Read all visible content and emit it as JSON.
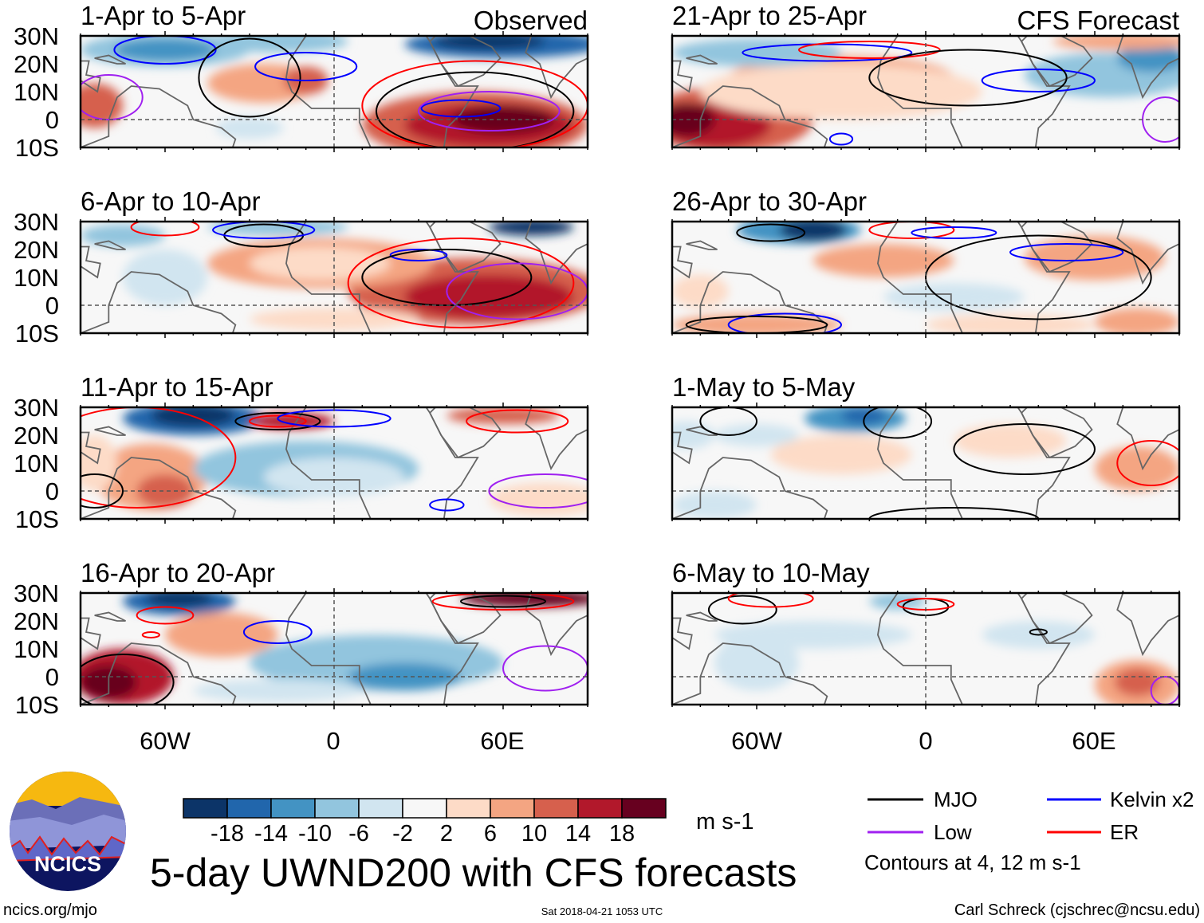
{
  "column_headers": {
    "observed": "Observed",
    "forecast": "CFS Forecast"
  },
  "panels": [
    {
      "title": "1-Apr to 5-Apr",
      "kind": "observed"
    },
    {
      "title": "21-Apr to 25-Apr",
      "kind": "forecast"
    },
    {
      "title": "6-Apr to 10-Apr",
      "kind": "observed"
    },
    {
      "title": "26-Apr to 30-Apr",
      "kind": "forecast"
    },
    {
      "title": "11-Apr to 15-Apr",
      "kind": "observed"
    },
    {
      "title": "1-May to 5-May",
      "kind": "forecast"
    },
    {
      "title": "16-Apr to 20-Apr",
      "kind": "observed"
    },
    {
      "title": "6-May to 10-May",
      "kind": "forecast"
    }
  ],
  "lat_labels": [
    "30N",
    "20N",
    "10N",
    "0",
    "10S"
  ],
  "lon_labels": [
    "60W",
    "0",
    "60E"
  ],
  "colorbar": {
    "labels": [
      "-18",
      "-14",
      "-10",
      "-6",
      "-2",
      "2",
      "6",
      "10",
      "14",
      "18"
    ],
    "colors": [
      "#0c3468",
      "#2166ac",
      "#4393c3",
      "#92c5de",
      "#d1e5f0",
      "#f7f7f7",
      "#fddbc7",
      "#f4a582",
      "#d6604d",
      "#b2182b",
      "#67001f"
    ],
    "units": "m s-1"
  },
  "legend": {
    "items": [
      {
        "label": "MJO",
        "color": "#000000"
      },
      {
        "label": "Kelvin x2",
        "color": "#0000ff"
      },
      {
        "label": "Low",
        "color": "#a020f0"
      },
      {
        "label": "ER",
        "color": "#ff0000"
      }
    ],
    "note": "Contours at 4, 12 m s-1"
  },
  "title": "5-day UWND200 with CFS forecasts",
  "logo_text": "NCICS",
  "footer": {
    "url": "ncics.org/mjo",
    "timestamp": "Sat 2018-04-21 1053 UTC",
    "author": "Carl Schreck (cjschrec@ncsu.edu)"
  }
}
